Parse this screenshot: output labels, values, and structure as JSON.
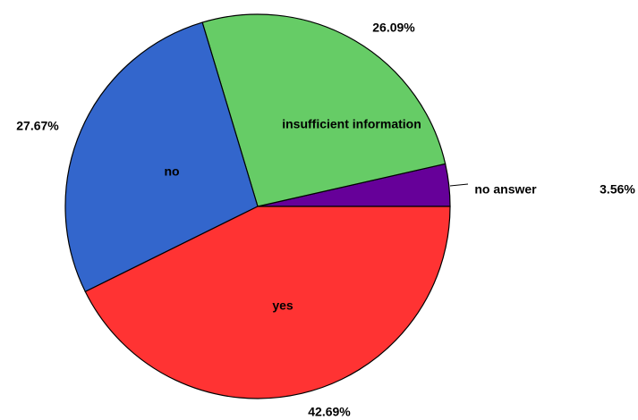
{
  "chart_data": {
    "type": "pie",
    "categories": [
      "no answer",
      "insufficient information",
      "no",
      "yes"
    ],
    "values": [
      3.56,
      26.09,
      27.67,
      42.69
    ],
    "value_labels": [
      "3.56%",
      "26.09%",
      "27.67%",
      "42.69%"
    ],
    "colors": [
      "#660099",
      "#66cc66",
      "#3366cc",
      "#ff3333"
    ]
  }
}
